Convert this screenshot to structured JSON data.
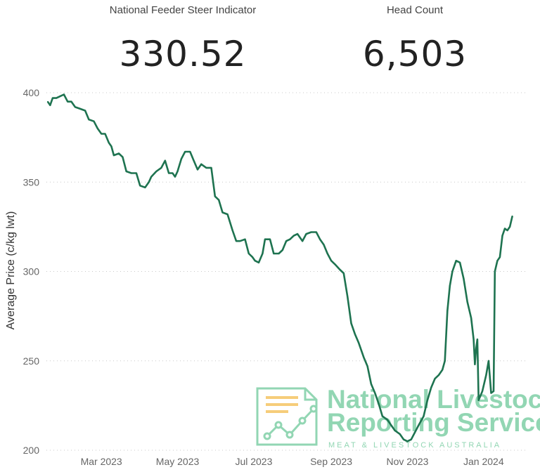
{
  "kpis": {
    "left": {
      "label": "National Feeder Steer Indicator",
      "value": "330.52"
    },
    "right": {
      "label": "Head Count",
      "value": "6,503"
    }
  },
  "watermark": {
    "line1": "National Livestock",
    "line2": "Reporting Service",
    "line3": "MEAT & LIVESTOCK AUSTRALIA",
    "color": "#7fcfa6",
    "icon": "chart-document-icon"
  },
  "chart_data": {
    "type": "line",
    "title": "",
    "xlabel": "",
    "ylabel": "Average Price (c/kg lwt)",
    "ylim": [
      200,
      400
    ],
    "yticks": [
      200,
      250,
      300,
      350,
      400
    ],
    "grid": true,
    "line_color": "#1e7350",
    "x_tick_labels": [
      "Mar 2023",
      "May 2023",
      "Jul 2023",
      "Sep 2023",
      "Nov 2023",
      "Jan 2024"
    ],
    "x_tick_dates": [
      "2023-03-01",
      "2023-05-01",
      "2023-07-01",
      "2023-09-01",
      "2023-11-01",
      "2024-01-01"
    ],
    "xlim": [
      "2023-01-16",
      "2024-02-05"
    ],
    "series": [
      {
        "values": [
          [
            "2023-01-17",
            395
          ],
          [
            "2023-01-19",
            393
          ],
          [
            "2023-01-21",
            397
          ],
          [
            "2023-01-24",
            397
          ],
          [
            "2023-01-27",
            398
          ],
          [
            "2023-01-30",
            399
          ],
          [
            "2023-02-02",
            395
          ],
          [
            "2023-02-05",
            395
          ],
          [
            "2023-02-08",
            392
          ],
          [
            "2023-02-12",
            391
          ],
          [
            "2023-02-16",
            390
          ],
          [
            "2023-02-19",
            385
          ],
          [
            "2023-02-23",
            384
          ],
          [
            "2023-02-26",
            380
          ],
          [
            "2023-03-01",
            377
          ],
          [
            "2023-03-04",
            377
          ],
          [
            "2023-03-07",
            372
          ],
          [
            "2023-03-09",
            370
          ],
          [
            "2023-03-11",
            365
          ],
          [
            "2023-03-15",
            366
          ],
          [
            "2023-03-18",
            364
          ],
          [
            "2023-03-21",
            356
          ],
          [
            "2023-03-25",
            355
          ],
          [
            "2023-03-29",
            355
          ],
          [
            "2023-04-01",
            348
          ],
          [
            "2023-04-05",
            347
          ],
          [
            "2023-04-08",
            350
          ],
          [
            "2023-04-10",
            353
          ],
          [
            "2023-04-14",
            356
          ],
          [
            "2023-04-18",
            358
          ],
          [
            "2023-04-21",
            362
          ],
          [
            "2023-04-24",
            355
          ],
          [
            "2023-04-27",
            355
          ],
          [
            "2023-04-29",
            353
          ],
          [
            "2023-05-01",
            356
          ],
          [
            "2023-05-04",
            363
          ],
          [
            "2023-05-07",
            367
          ],
          [
            "2023-05-11",
            367
          ],
          [
            "2023-05-14",
            362
          ],
          [
            "2023-05-17",
            357
          ],
          [
            "2023-05-20",
            360
          ],
          [
            "2023-05-24",
            358
          ],
          [
            "2023-05-28",
            358
          ],
          [
            "2023-05-31",
            342
          ],
          [
            "2023-06-03",
            340
          ],
          [
            "2023-06-06",
            333
          ],
          [
            "2023-06-10",
            332
          ],
          [
            "2023-06-14",
            323
          ],
          [
            "2023-06-17",
            317
          ],
          [
            "2023-06-20",
            317
          ],
          [
            "2023-06-24",
            318
          ],
          [
            "2023-06-27",
            310
          ],
          [
            "2023-06-30",
            308
          ],
          [
            "2023-07-02",
            306
          ],
          [
            "2023-07-05",
            305
          ],
          [
            "2023-07-08",
            310
          ],
          [
            "2023-07-10",
            318
          ],
          [
            "2023-07-14",
            318
          ],
          [
            "2023-07-17",
            310
          ],
          [
            "2023-07-21",
            310
          ],
          [
            "2023-07-24",
            312
          ],
          [
            "2023-07-27",
            317
          ],
          [
            "2023-07-30",
            318
          ],
          [
            "2023-08-02",
            320
          ],
          [
            "2023-08-05",
            321
          ],
          [
            "2023-08-09",
            317
          ],
          [
            "2023-08-12",
            321
          ],
          [
            "2023-08-16",
            322
          ],
          [
            "2023-08-20",
            322
          ],
          [
            "2023-08-23",
            318
          ],
          [
            "2023-08-26",
            315
          ],
          [
            "2023-08-29",
            310
          ],
          [
            "2023-09-01",
            306
          ],
          [
            "2023-09-04",
            304
          ],
          [
            "2023-09-08",
            301
          ],
          [
            "2023-09-11",
            299
          ],
          [
            "2023-09-14",
            286
          ],
          [
            "2023-09-17",
            271
          ],
          [
            "2023-09-20",
            265
          ],
          [
            "2023-09-23",
            260
          ],
          [
            "2023-09-27",
            252
          ],
          [
            "2023-09-30",
            247
          ],
          [
            "2023-10-03",
            237
          ],
          [
            "2023-10-06",
            232
          ],
          [
            "2023-10-09",
            226
          ],
          [
            "2023-10-12",
            219
          ],
          [
            "2023-10-16",
            217
          ],
          [
            "2023-10-19",
            214
          ],
          [
            "2023-10-22",
            211
          ],
          [
            "2023-10-26",
            209
          ],
          [
            "2023-10-29",
            206
          ],
          [
            "2023-11-01",
            205
          ],
          [
            "2023-11-04",
            206
          ],
          [
            "2023-11-07",
            210
          ],
          [
            "2023-11-10",
            214
          ],
          [
            "2023-11-14",
            219
          ],
          [
            "2023-11-17",
            228
          ],
          [
            "2023-11-20",
            235
          ],
          [
            "2023-11-23",
            240
          ],
          [
            "2023-11-26",
            242
          ],
          [
            "2023-11-29",
            245
          ],
          [
            "2023-12-01",
            250
          ],
          [
            "2023-12-03",
            278
          ],
          [
            "2023-12-05",
            292
          ],
          [
            "2023-12-07",
            300
          ],
          [
            "2023-12-10",
            306
          ],
          [
            "2023-12-13",
            305
          ],
          [
            "2023-12-16",
            296
          ],
          [
            "2023-12-19",
            283
          ],
          [
            "2023-12-22",
            274
          ],
          [
            "2023-12-24",
            262
          ],
          [
            "2023-12-25",
            248
          ],
          [
            "2023-12-26",
            257
          ],
          [
            "2023-12-27",
            262
          ],
          [
            "2023-12-28",
            228
          ],
          [
            "2023-12-31",
            233
          ],
          [
            "2024-01-03",
            242
          ],
          [
            "2024-01-05",
            250
          ],
          [
            "2024-01-07",
            232
          ],
          [
            "2024-01-09",
            233
          ],
          [
            "2024-01-10",
            300
          ],
          [
            "2024-01-12",
            306
          ],
          [
            "2024-01-14",
            308
          ],
          [
            "2024-01-16",
            320
          ],
          [
            "2024-01-18",
            324
          ],
          [
            "2024-01-20",
            323
          ],
          [
            "2024-01-22",
            325
          ],
          [
            "2024-01-24",
            331
          ]
        ]
      }
    ]
  }
}
